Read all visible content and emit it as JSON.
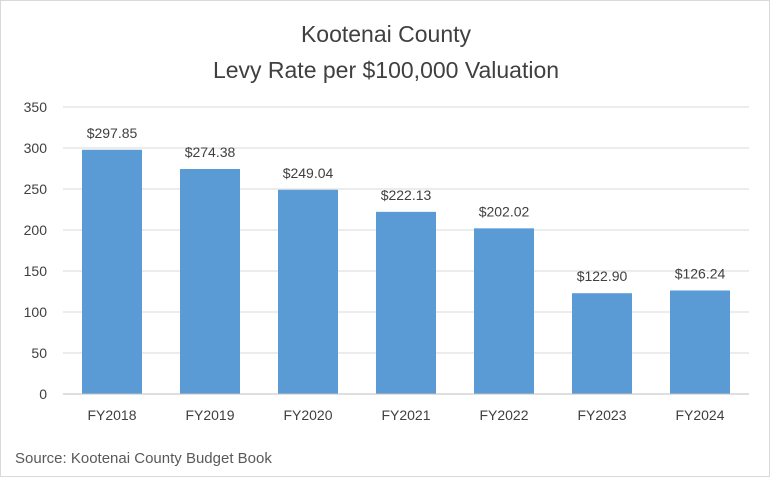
{
  "chart_data": {
    "type": "bar",
    "title_lines": [
      "Kootenai County",
      "Levy Rate per $100,000 Valuation"
    ],
    "categories": [
      "FY2018",
      "FY2019",
      "FY2020",
      "FY2021",
      "FY2022",
      "FY2023",
      "FY2024"
    ],
    "values": [
      297.85,
      274.38,
      249.04,
      222.13,
      202.02,
      122.9,
      126.24
    ],
    "data_labels": [
      "$297.85",
      "$274.38",
      "$249.04",
      "$222.13",
      "$202.02",
      "$122.90",
      "$126.24"
    ],
    "ylim": [
      0,
      350
    ],
    "yticks": [
      0,
      50,
      100,
      150,
      200,
      250,
      300,
      350
    ],
    "ytick_labels": [
      "0",
      "50",
      "100",
      "150",
      "200",
      "250",
      "300",
      "350"
    ],
    "xlabel": "",
    "ylabel": "",
    "grid": true,
    "legend": "none",
    "bar_color": "#5b9bd5",
    "source": "Source:  Kootenai County Budget Book"
  }
}
